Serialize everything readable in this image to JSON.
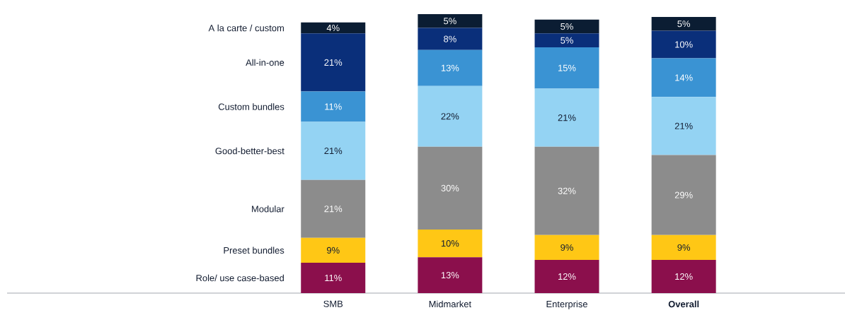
{
  "chart_data": {
    "type": "bar",
    "stacked": true,
    "legend": "left",
    "categories": [
      "SMB",
      "Midmarket",
      "Enterprise",
      "**Overall**"
    ],
    "series": [
      {
        "name": "Role/ use case-based",
        "color": "#8b0f4c",
        "values": [
          11,
          13,
          12,
          12
        ],
        "value_labels": [
          "11%",
          "13%",
          "12%",
          "12%"
        ]
      },
      {
        "name": "Preset bundles",
        "color": "#ffc715",
        "values": [
          9,
          10,
          9,
          9
        ],
        "value_labels": [
          "9%",
          "10%",
          "9%",
          "9%"
        ]
      },
      {
        "name": "Modular",
        "color": "#8c8c8c",
        "values": [
          21,
          30,
          32,
          29
        ],
        "value_labels": [
          "21%",
          "30%",
          "32%",
          "29%"
        ]
      },
      {
        "name": "Good-better-best",
        "color": "#94d3f3",
        "values": [
          21,
          22,
          21,
          21
        ],
        "value_labels": [
          "21%",
          "22%",
          "21%",
          "21%"
        ]
      },
      {
        "name": "Custom bundles",
        "color": "#3a93d3",
        "values": [
          11,
          13,
          15,
          14
        ],
        "value_labels": [
          "11%",
          "13%",
          "15%",
          "14%"
        ]
      },
      {
        "name": "All-in-one",
        "color": "#0a2f7a",
        "values": [
          21,
          8,
          5,
          10
        ],
        "value_labels": [
          "21%",
          "8%",
          "5%",
          "10%"
        ]
      },
      {
        "name": "A la carte / custom",
        "color": "#0b1d33",
        "values": [
          4,
          5,
          5,
          5
        ],
        "value_labels": [
          "4%",
          "5%",
          "5%",
          "5%"
        ]
      }
    ]
  }
}
